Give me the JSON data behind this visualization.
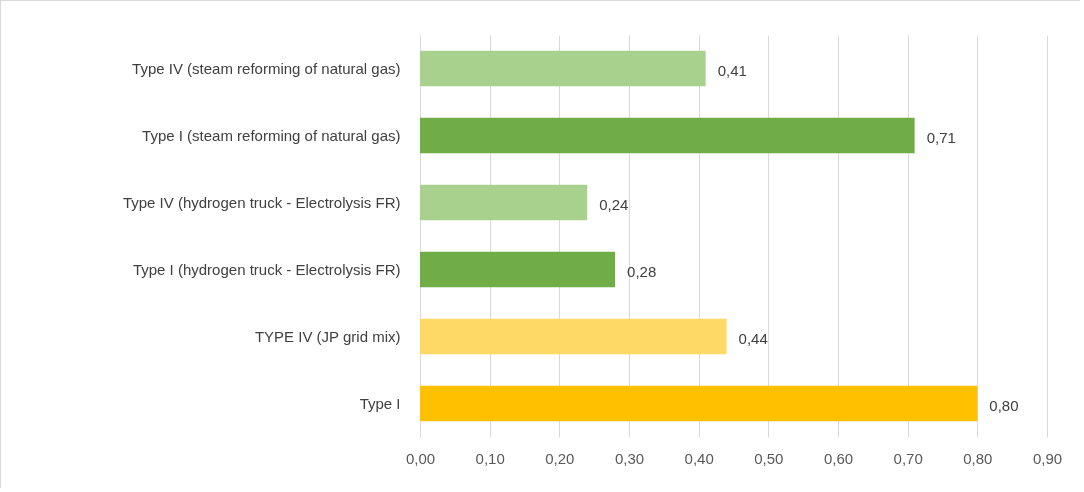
{
  "chart_data": {
    "type": "bar",
    "orientation": "horizontal",
    "categories": [
      "Type IV (steam reforming of natural gas)",
      "Type I (steam reforming of natural gas)",
      "Type IV (hydrogen truck - Electrolysis FR)",
      "Type I (hydrogen truck - Electrolysis FR)",
      "TYPE IV (JP grid mix)",
      "Type I"
    ],
    "values": [
      0.41,
      0.71,
      0.24,
      0.28,
      0.44,
      0.8
    ],
    "value_labels": [
      "0,41",
      "0,71",
      "0,24",
      "0,28",
      "0,44",
      "0,80"
    ],
    "colors": [
      "#a9d18e",
      "#70ad47",
      "#a9d18e",
      "#70ad47",
      "#ffd966",
      "#ffc000"
    ],
    "xlim": [
      0,
      0.9
    ],
    "xticks": [
      {
        "value": 0,
        "label": "0,00"
      },
      {
        "value": 0.1,
        "label": "0,10"
      },
      {
        "value": 0.2,
        "label": "0,20"
      },
      {
        "value": 0.3,
        "label": "0,30"
      },
      {
        "value": 0.4,
        "label": "0,40"
      },
      {
        "value": 0.5,
        "label": "0,50"
      },
      {
        "value": 0.6,
        "label": "0,60"
      },
      {
        "value": 0.7,
        "label": "0,70"
      },
      {
        "value": 0.8,
        "label": "0,80"
      },
      {
        "value": 0.9,
        "label": "0,90"
      }
    ],
    "grid": "x"
  }
}
